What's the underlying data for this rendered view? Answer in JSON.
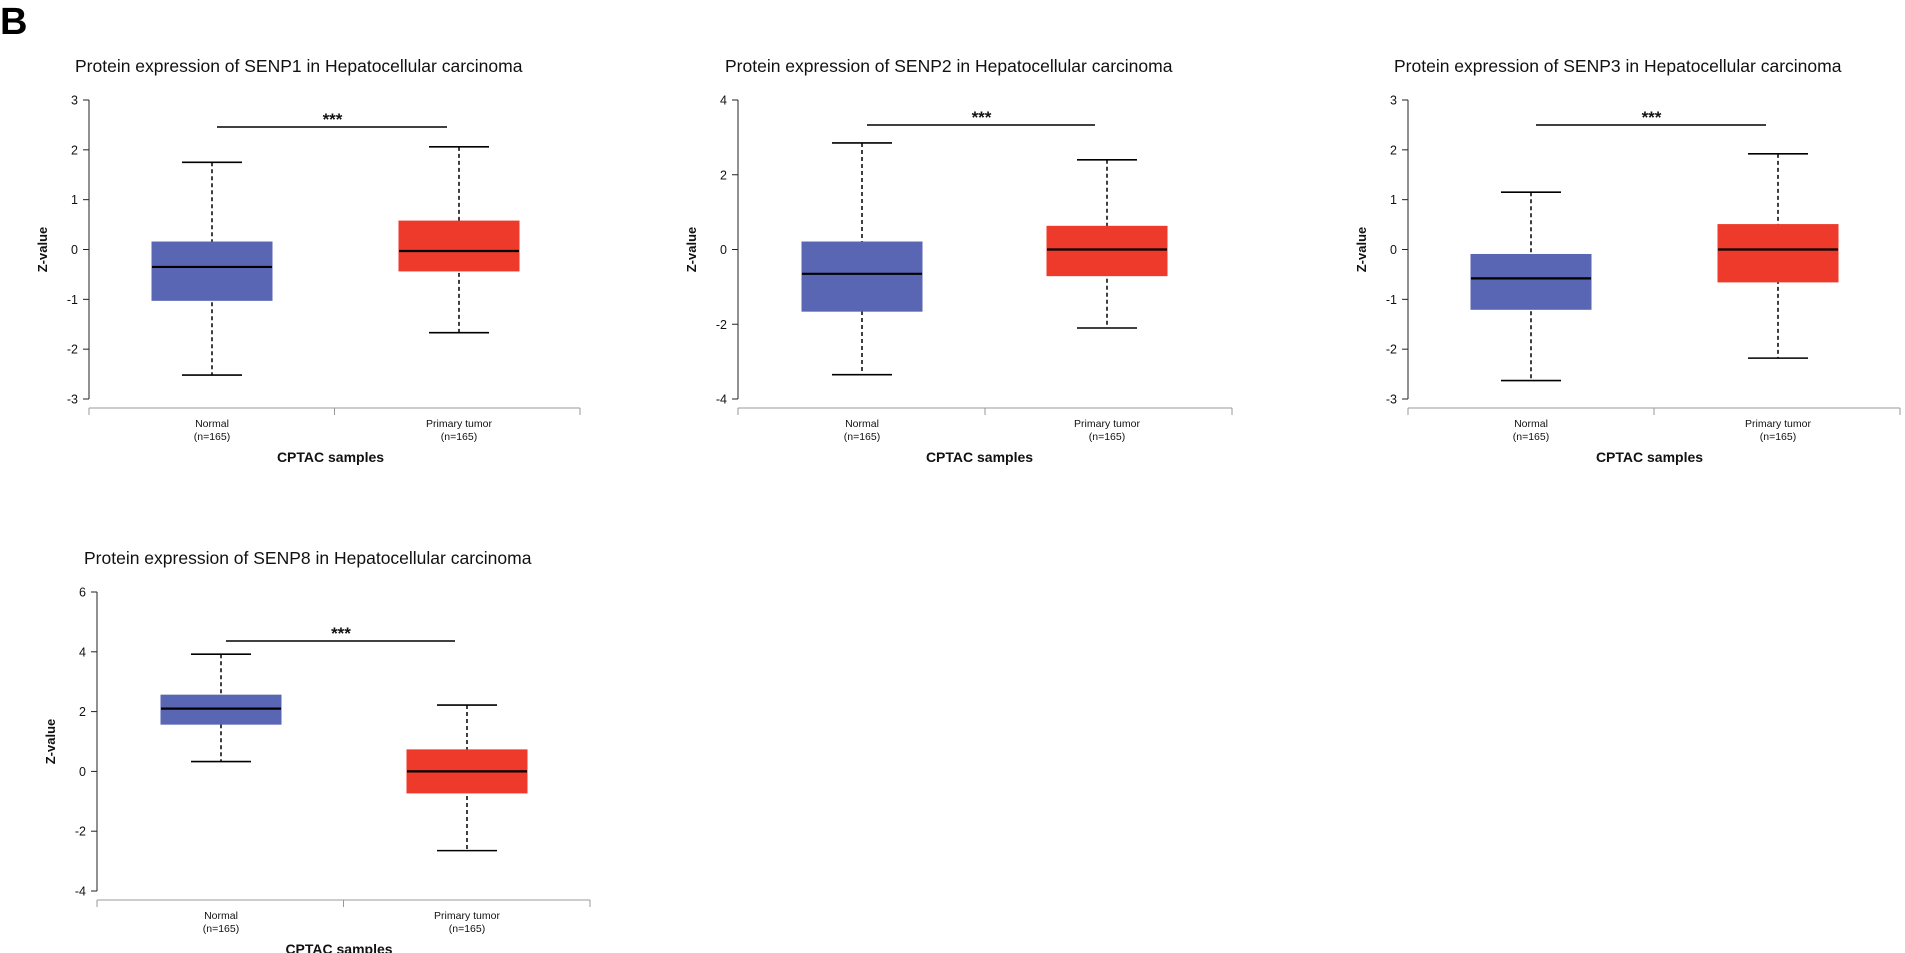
{
  "panel_label": "B",
  "colors": {
    "normal": "#5966b3",
    "tumor": "#ee3a2a",
    "axis": "#222222"
  },
  "chart_data": [
    {
      "type": "box",
      "title": "Protein expression of SENP1 in Hepatocellular carcinoma",
      "xlabel": "CPTAC samples",
      "ylabel": "Z-value",
      "ylim": [
        -3,
        3
      ],
      "yticks": [
        -3,
        -2,
        -1,
        0,
        1,
        2,
        3
      ],
      "significance": "***",
      "boxes": [
        {
          "name": "Normal",
          "n": "(n=165)",
          "whisker_low": -2.52,
          "q1": -1.02,
          "median": -0.35,
          "q3": 0.15,
          "whisker_high": 1.75
        },
        {
          "name": "Primary tumor",
          "n": "(n=165)",
          "whisker_low": -1.67,
          "q1": -0.43,
          "median": -0.03,
          "q3": 0.57,
          "whisker_high": 2.06
        }
      ]
    },
    {
      "type": "box",
      "title": "Protein expression of SENP2 in Hepatocellular carcinoma",
      "xlabel": "CPTAC samples",
      "ylabel": "Z-value",
      "ylim": [
        -4,
        4
      ],
      "yticks": [
        -4,
        -2,
        0,
        2,
        4
      ],
      "significance": "***",
      "boxes": [
        {
          "name": "Normal",
          "n": "(n=165)",
          "whisker_low": -3.35,
          "q1": -1.65,
          "median": -0.65,
          "q3": 0.2,
          "whisker_high": 2.85
        },
        {
          "name": "Primary tumor",
          "n": "(n=165)",
          "whisker_low": -2.1,
          "q1": -0.7,
          "median": 0.0,
          "q3": 0.62,
          "whisker_high": 2.4
        }
      ]
    },
    {
      "type": "box",
      "title": "Protein expression of SENP3 in Hepatocellular carcinoma",
      "xlabel": "CPTAC samples",
      "ylabel": "Z-value",
      "ylim": [
        -3,
        3
      ],
      "yticks": [
        -3,
        -2,
        -1,
        0,
        1,
        2,
        3
      ],
      "significance": "***",
      "boxes": [
        {
          "name": "Normal",
          "n": "(n=165)",
          "whisker_low": -2.63,
          "q1": -1.2,
          "median": -0.58,
          "q3": -0.1,
          "whisker_high": 1.15
        },
        {
          "name": "Primary tumor",
          "n": "(n=165)",
          "whisker_low": -2.18,
          "q1": -0.65,
          "median": 0.0,
          "q3": 0.5,
          "whisker_high": 1.92
        }
      ]
    },
    {
      "type": "box",
      "title": "Protein expression of SENP8 in Hepatocellular carcinoma",
      "xlabel": "CPTAC samples",
      "ylabel": "Z-value",
      "ylim": [
        -4,
        6
      ],
      "yticks": [
        -4,
        -2,
        0,
        2,
        4,
        6
      ],
      "significance": "***",
      "boxes": [
        {
          "name": "Normal",
          "n": "(n=165)",
          "whisker_low": 0.33,
          "q1": 1.58,
          "median": 2.1,
          "q3": 2.55,
          "whisker_high": 3.92
        },
        {
          "name": "Primary tumor",
          "n": "(n=165)",
          "whisker_low": -2.65,
          "q1": -0.72,
          "median": 0.0,
          "q3": 0.72,
          "whisker_high": 2.22
        }
      ]
    }
  ]
}
